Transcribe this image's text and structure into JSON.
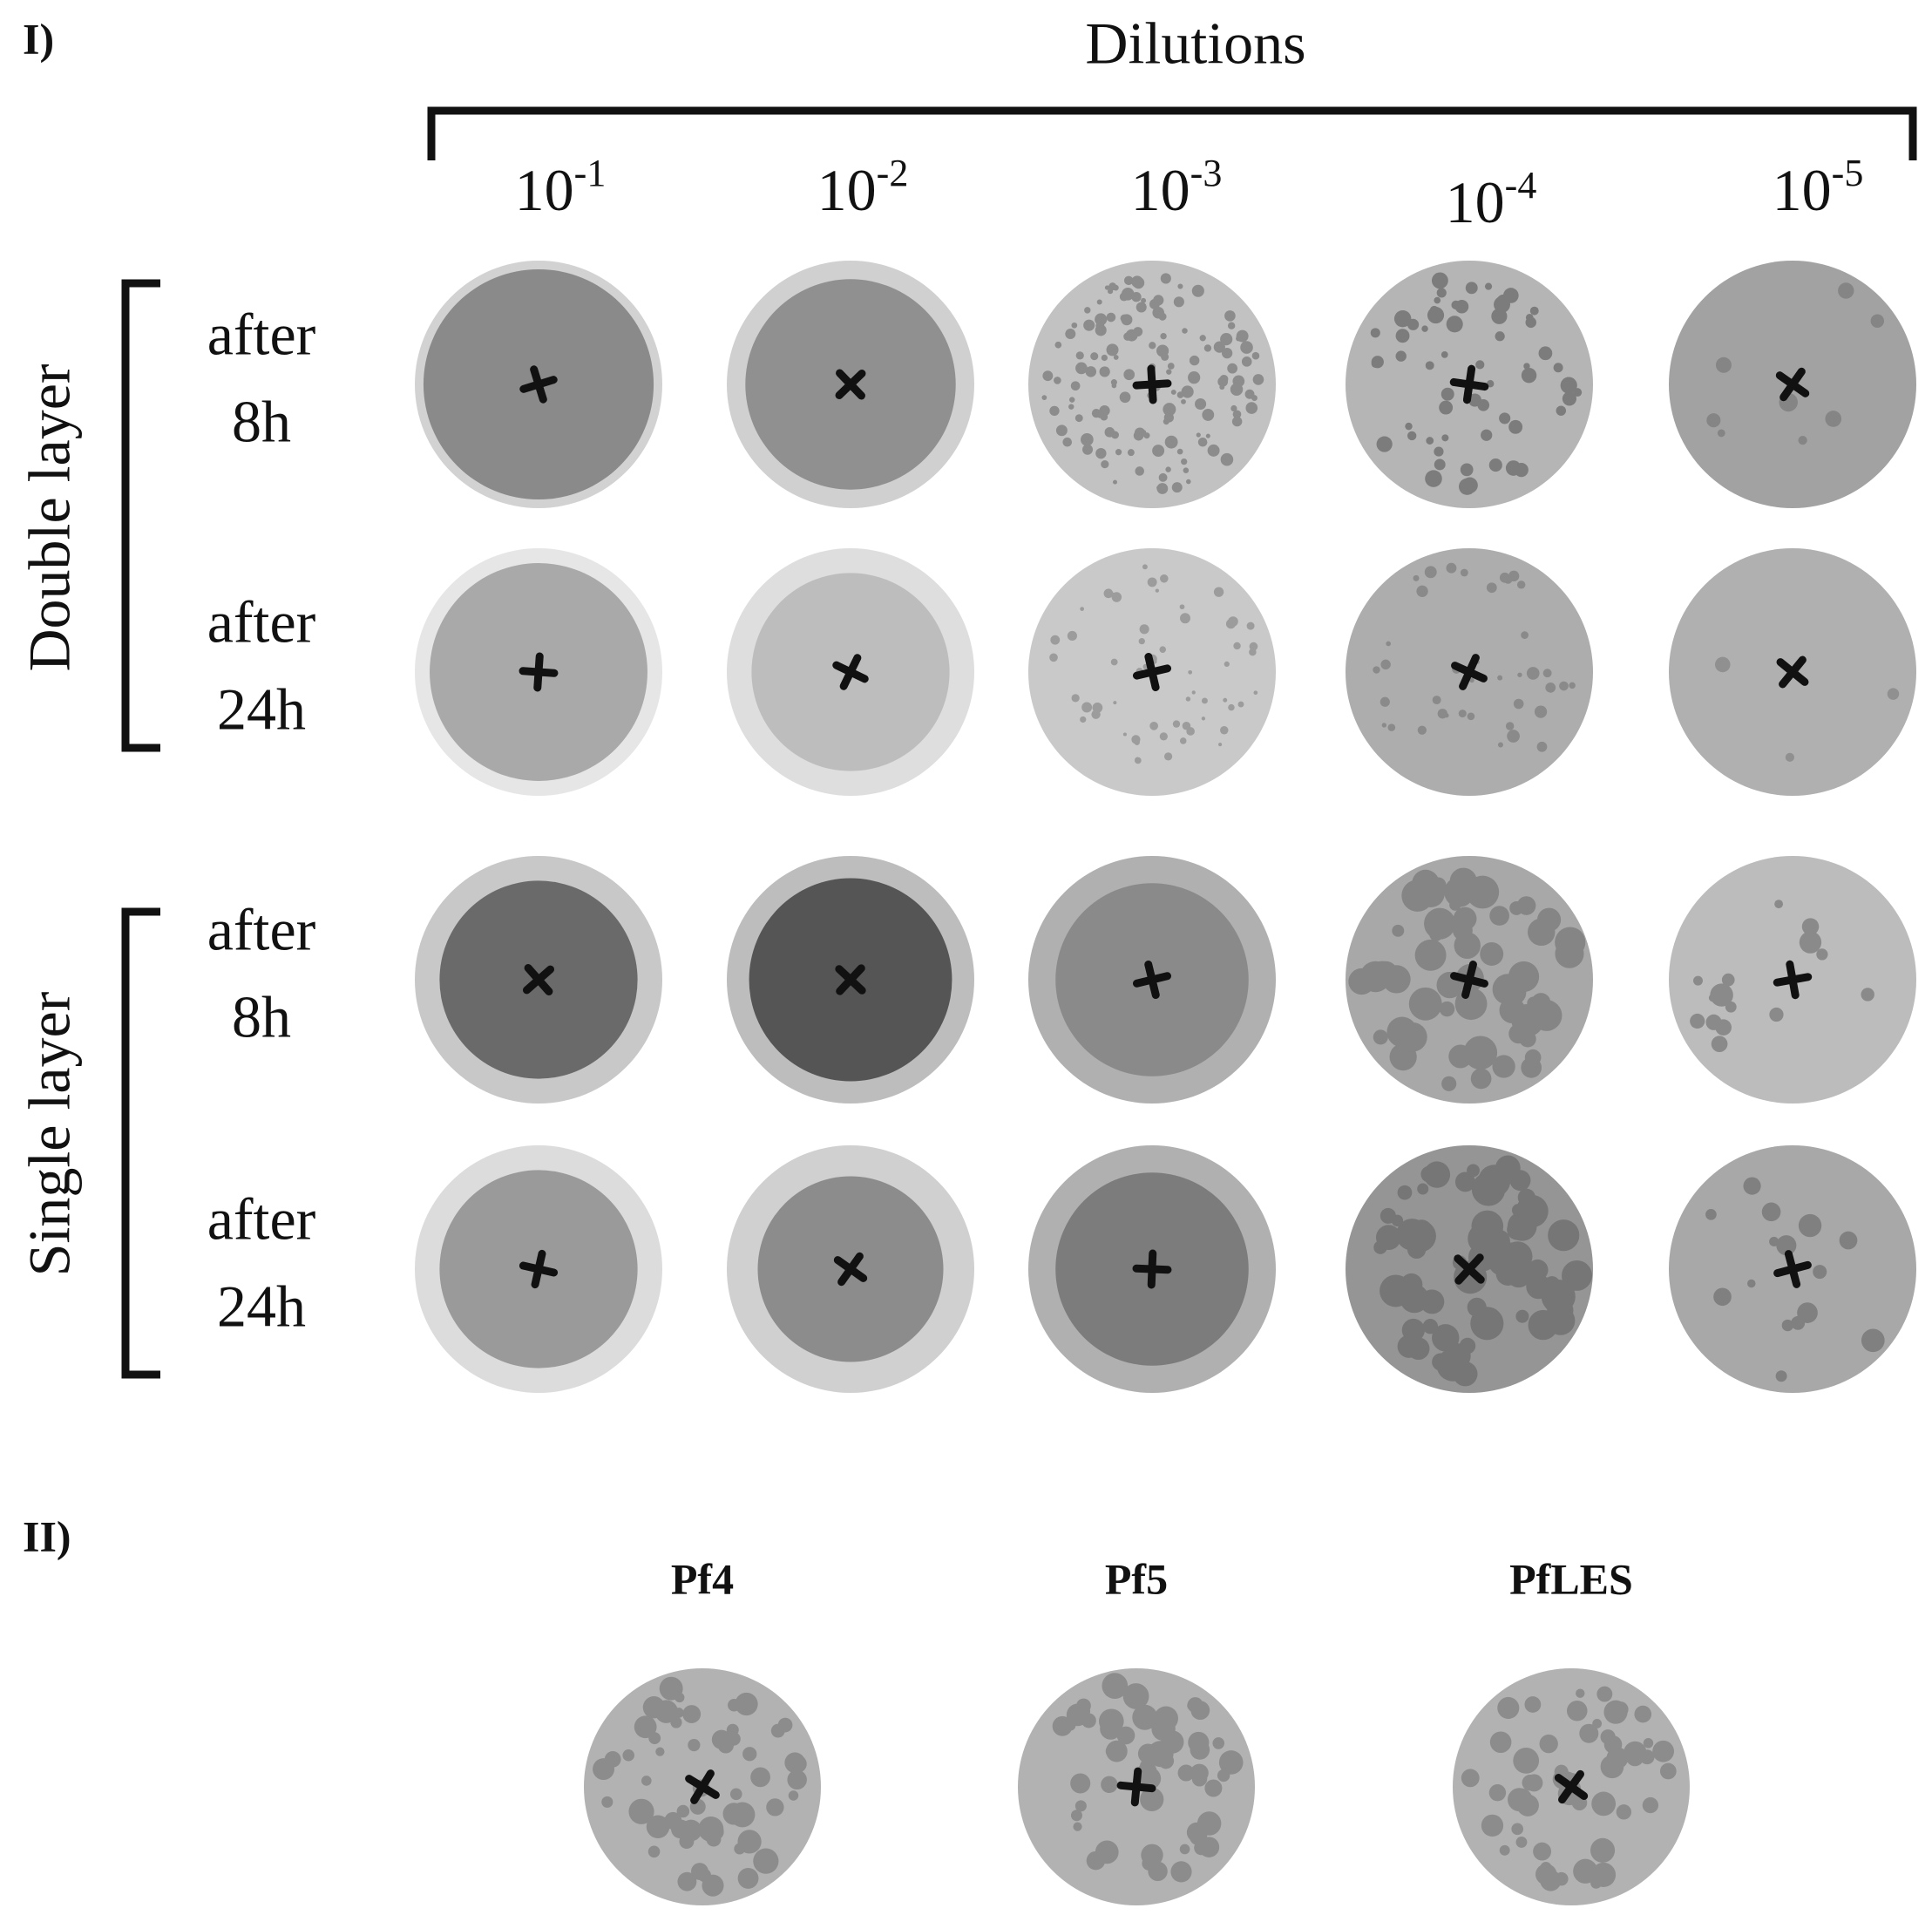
{
  "panel_1": {
    "label": "I)",
    "title": "Dilutions",
    "dilutions": [
      {
        "base": "10",
        "exponent": "-1"
      },
      {
        "base": "10",
        "exponent": "-2"
      },
      {
        "base": "10",
        "exponent": "-3"
      },
      {
        "base": "10",
        "exponent": "-4"
      },
      {
        "base": "10",
        "exponent": "-5"
      }
    ],
    "groups": [
      {
        "label": "Double layer",
        "rows": [
          {
            "lines": [
              "after",
              "8h"
            ]
          },
          {
            "lines": [
              "after",
              "24h"
            ]
          }
        ]
      },
      {
        "label": "Single layer",
        "rows": [
          {
            "lines": [
              "after",
              "8h"
            ]
          },
          {
            "lines": [
              "after",
              "24h"
            ]
          }
        ]
      }
    ]
  },
  "panel_2": {
    "label": "II)",
    "phages": [
      "Pf4",
      "Pf5",
      "PfLES"
    ]
  }
}
